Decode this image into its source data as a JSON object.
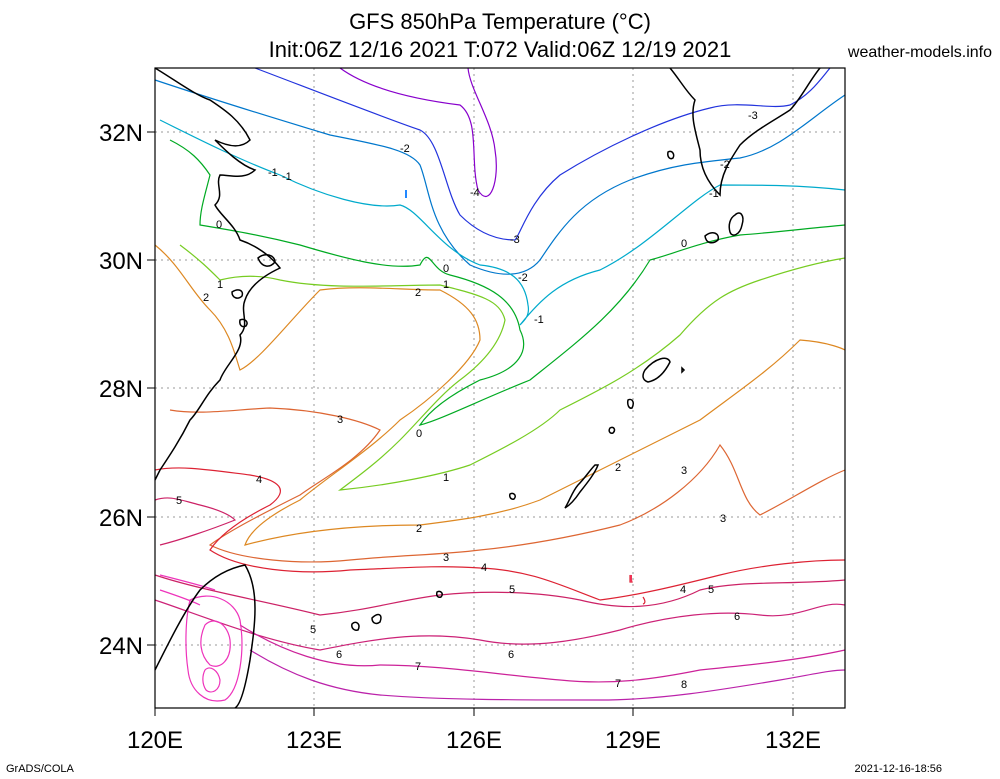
{
  "header": {
    "title_line1": "GFS 850hPa Temperature (°C)",
    "title_line2": "Init:06Z 12/16 2021 T:072 Valid:06Z 12/19 2021",
    "site": "weather-models.info"
  },
  "footer": {
    "credit": "GrADS/COLA",
    "timestamp": "2021-12-16-18:56"
  },
  "map": {
    "lon_labels": [
      "120E",
      "123E",
      "126E",
      "129E",
      "132E"
    ],
    "lat_labels": [
      "32N",
      "30N",
      "28N",
      "26N",
      "24N"
    ],
    "lon_range": [
      120,
      133
    ],
    "lat_range": [
      23,
      33
    ],
    "grid": "dotted",
    "contour_interval_degC": 1,
    "contour_colors": {
      "-4": "#8800cc",
      "-3": "#2233dd",
      "-2": "#0077cc",
      "-1": "#00aacc",
      "0": "#00aa22",
      "1": "#77cc22",
      "2": "#dd8822",
      "3": "#dd6633",
      "4": "#dd2233",
      "5": "#cc2266",
      "6": "#cc2277",
      "7": "#cc2299",
      "8": "#bb22aa",
      "9": "#dd44cc",
      "warm": "#ee33bb"
    },
    "contour_labels": [
      {
        "text": "-4"
      },
      {
        "text": "-3"
      },
      {
        "text": "-2"
      },
      {
        "text": "-1"
      },
      {
        "text": "-3"
      },
      {
        "text": "-2"
      },
      {
        "text": "-1"
      },
      {
        "text": "-1"
      },
      {
        "text": "-1"
      },
      {
        "text": "-2"
      },
      {
        "text": "-3"
      },
      {
        "text": "0"
      },
      {
        "text": "0"
      },
      {
        "text": "0"
      },
      {
        "text": "1"
      },
      {
        "text": "1"
      },
      {
        "text": "2"
      },
      {
        "text": "2"
      },
      {
        "text": "1"
      },
      {
        "text": "2"
      },
      {
        "text": "3"
      },
      {
        "text": "3"
      },
      {
        "text": "3"
      },
      {
        "text": "3"
      },
      {
        "text": "4"
      },
      {
        "text": "5"
      },
      {
        "text": "4"
      },
      {
        "text": "5"
      },
      {
        "text": "4"
      },
      {
        "text": "5"
      },
      {
        "text": "5"
      },
      {
        "text": "6"
      },
      {
        "text": "6"
      },
      {
        "text": "6"
      },
      {
        "text": "7"
      },
      {
        "text": "7"
      },
      {
        "text": "8"
      },
      {
        "text": "2"
      },
      {
        "text": "0"
      }
    ]
  }
}
